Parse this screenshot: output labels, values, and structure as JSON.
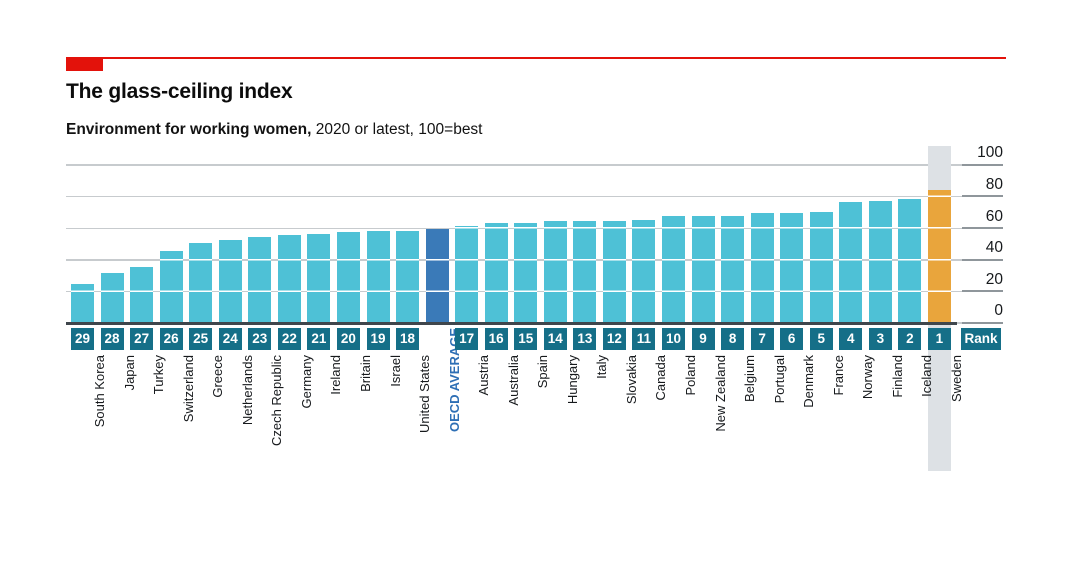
{
  "header": {
    "title": "The glass-ceiling index",
    "subtitle_bold": "Environment for working women,",
    "subtitle_rest": " 2020 or latest, 100=best"
  },
  "chart_data": {
    "type": "bar",
    "title": "The glass-ceiling index",
    "subtitle": "Environment for working women, 2020 or latest, 100=best",
    "ylim": [
      0,
      100
    ],
    "yticks": [
      100,
      80,
      60,
      40,
      20,
      0
    ],
    "grid": true,
    "legend": "none",
    "rank_header": "Rank",
    "bars": [
      {
        "rank": "29",
        "country": "South Korea",
        "value": 24,
        "kind": "country"
      },
      {
        "rank": "28",
        "country": "Japan",
        "value": 31,
        "kind": "country"
      },
      {
        "rank": "27",
        "country": "Turkey",
        "value": 35,
        "kind": "country"
      },
      {
        "rank": "26",
        "country": "Switzerland",
        "value": 45,
        "kind": "country"
      },
      {
        "rank": "25",
        "country": "Greece",
        "value": 50,
        "kind": "country"
      },
      {
        "rank": "24",
        "country": "Netherlands",
        "value": 52,
        "kind": "country"
      },
      {
        "rank": "23",
        "country": "Czech Republic",
        "value": 54,
        "kind": "country"
      },
      {
        "rank": "22",
        "country": "Germany",
        "value": 55,
        "kind": "country"
      },
      {
        "rank": "21",
        "country": "Ireland",
        "value": 56,
        "kind": "country"
      },
      {
        "rank": "20",
        "country": "Britain",
        "value": 57,
        "kind": "country"
      },
      {
        "rank": "19",
        "country": "Israel",
        "value": 58,
        "kind": "country"
      },
      {
        "rank": "18",
        "country": "United States",
        "value": 58,
        "kind": "country"
      },
      {
        "rank": "",
        "country": "OECD AVERAGE",
        "value": 59,
        "kind": "oecd"
      },
      {
        "rank": "17",
        "country": "Austria",
        "value": 61,
        "kind": "country"
      },
      {
        "rank": "16",
        "country": "Australia",
        "value": 63,
        "kind": "country"
      },
      {
        "rank": "15",
        "country": "Spain",
        "value": 63,
        "kind": "country"
      },
      {
        "rank": "14",
        "country": "Hungary",
        "value": 64,
        "kind": "country"
      },
      {
        "rank": "13",
        "country": "Italy",
        "value": 64,
        "kind": "country"
      },
      {
        "rank": "12",
        "country": "Slovakia",
        "value": 64,
        "kind": "country"
      },
      {
        "rank": "11",
        "country": "Canada",
        "value": 65,
        "kind": "country"
      },
      {
        "rank": "10",
        "country": "Poland",
        "value": 67,
        "kind": "country"
      },
      {
        "rank": "9",
        "country": "New Zealand",
        "value": 67,
        "kind": "country"
      },
      {
        "rank": "8",
        "country": "Belgium",
        "value": 67,
        "kind": "country"
      },
      {
        "rank": "7",
        "country": "Portugal",
        "value": 69,
        "kind": "country"
      },
      {
        "rank": "6",
        "country": "Denmark",
        "value": 69,
        "kind": "country"
      },
      {
        "rank": "5",
        "country": "France",
        "value": 70,
        "kind": "country"
      },
      {
        "rank": "4",
        "country": "Norway",
        "value": 76,
        "kind": "country"
      },
      {
        "rank": "3",
        "country": "Finland",
        "value": 77,
        "kind": "country"
      },
      {
        "rank": "2",
        "country": "Iceland",
        "value": 78,
        "kind": "country"
      },
      {
        "rank": "1",
        "country": "Sweden",
        "value": 84,
        "kind": "highlight"
      }
    ],
    "colors": {
      "bar": "#4EC1D6",
      "oecd_bar": "#3A7AB8",
      "highlight_bar": "#E9A53C",
      "rank_box": "#156F88",
      "oecd_label": "#2E6FB5",
      "accent_red": "#E3120B",
      "highlight_band": "#DDE1E5",
      "gridline": "#C7CBCE",
      "tick_segment": "#8F969B",
      "axis": "#3F464C"
    }
  }
}
